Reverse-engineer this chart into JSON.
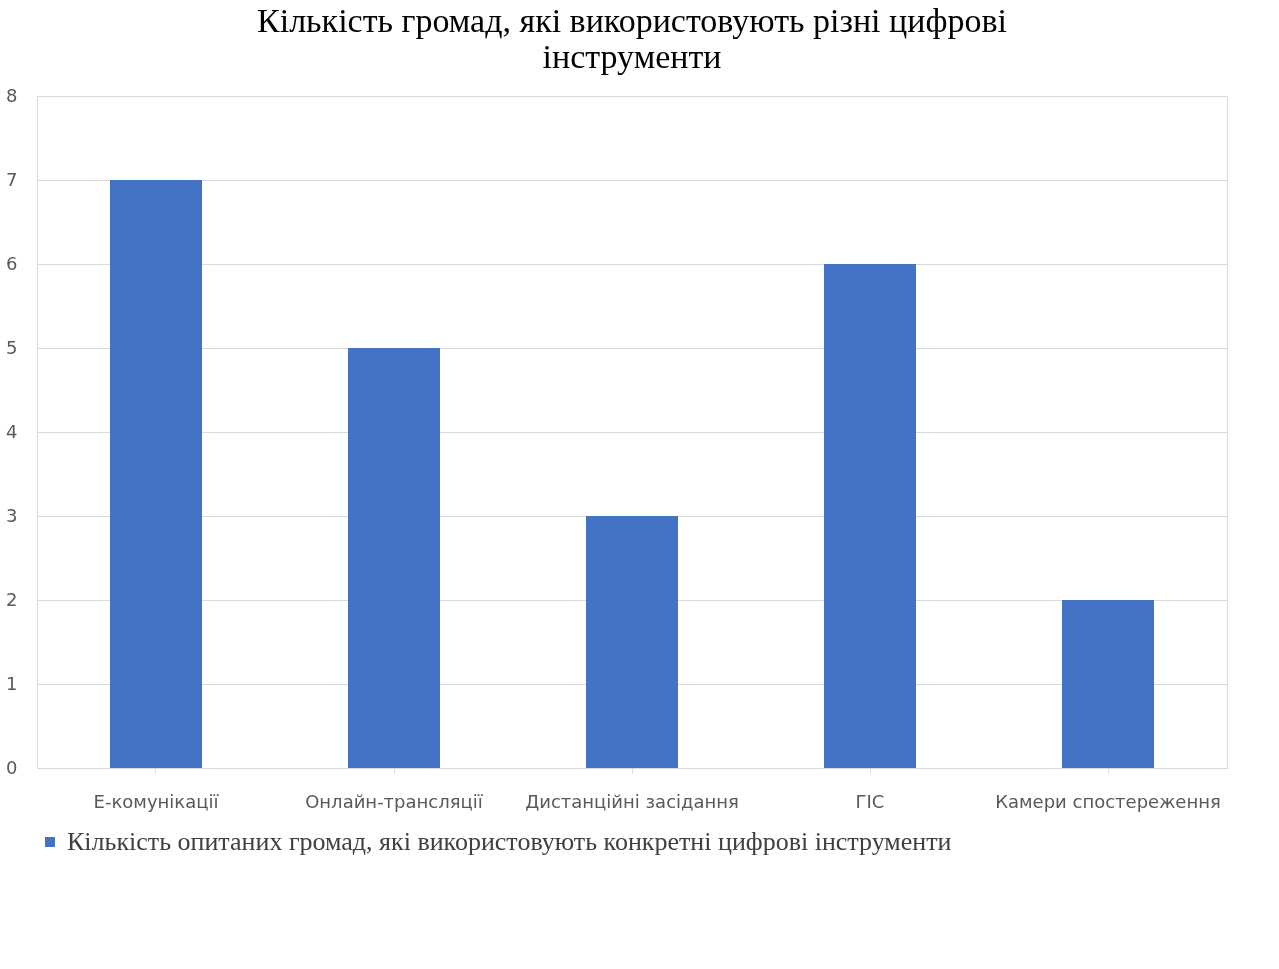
{
  "chart_data": {
    "type": "bar",
    "title": "Кількість громад, які використовують різні цифрові інструменти",
    "categories": [
      "Е-комунікації",
      "Онлайн-трансляції",
      "Дистанційні засідання",
      "ГІС",
      "Камери спостереження"
    ],
    "series": [
      {
        "name": "Кількість опитаних громад, які використовують конкретні цифрові інструменти",
        "color": "#4472c4",
        "values": [
          7,
          5,
          3,
          6,
          2
        ]
      }
    ],
    "ylim": [
      0,
      8
    ],
    "yticks": [
      0,
      1,
      2,
      3,
      4,
      5,
      6,
      7,
      8
    ],
    "grid": "y",
    "legend": "bottom"
  }
}
